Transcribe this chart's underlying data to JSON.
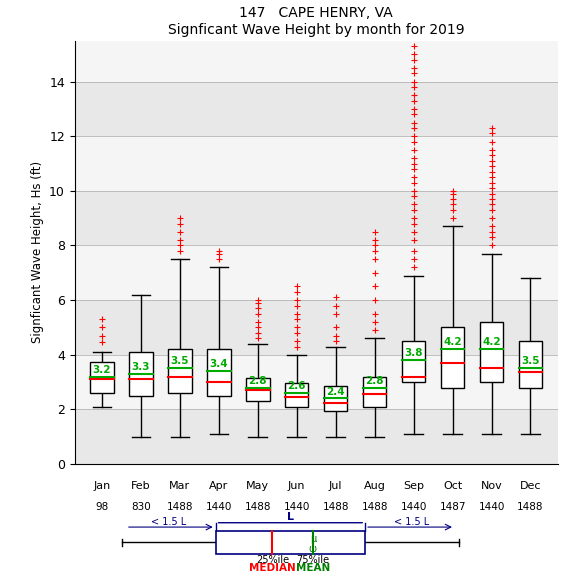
{
  "title1": "147   CAPE HENRY, VA",
  "title2": "Signficant Wave Height by month for 2019",
  "ylabel": "Signficant Wave Height, Hs (ft)",
  "months": [
    "Jan",
    "Feb",
    "Mar",
    "Apr",
    "May",
    "Jun",
    "Jul",
    "Aug",
    "Sep",
    "Oct",
    "Nov",
    "Dec"
  ],
  "counts": [
    "98",
    "830",
    "1488",
    "1440",
    "1488",
    "1440",
    "1488",
    "1488",
    "1440",
    "1487",
    "1440",
    "1488"
  ],
  "ylim": [
    0,
    15.5
  ],
  "yticks": [
    0,
    2,
    4,
    6,
    8,
    10,
    12,
    14
  ],
  "box_stats": [
    {
      "q1": 2.6,
      "median": 3.1,
      "q3": 3.75,
      "whislo": 2.1,
      "whishi": 4.1,
      "mean": 3.2,
      "fliers_high": [
        4.45,
        4.7,
        5.0,
        5.3
      ],
      "fliers_low": []
    },
    {
      "q1": 2.5,
      "median": 3.1,
      "q3": 4.1,
      "whislo": 1.0,
      "whishi": 6.2,
      "mean": 3.3,
      "fliers_high": [],
      "fliers_low": []
    },
    {
      "q1": 2.6,
      "median": 3.2,
      "q3": 4.2,
      "whislo": 1.0,
      "whishi": 7.5,
      "mean": 3.5,
      "fliers_high": [
        7.8,
        8.0,
        8.2,
        8.5,
        8.8,
        9.0
      ],
      "fliers_low": []
    },
    {
      "q1": 2.5,
      "median": 3.0,
      "q3": 4.2,
      "whislo": 1.1,
      "whishi": 7.2,
      "mean": 3.4,
      "fliers_high": [
        7.5,
        7.7,
        7.8
      ],
      "fliers_low": []
    },
    {
      "q1": 2.3,
      "median": 2.7,
      "q3": 3.15,
      "whislo": 1.0,
      "whishi": 4.4,
      "mean": 2.8,
      "fliers_high": [
        4.6,
        4.8,
        5.0,
        5.2,
        5.5,
        5.7,
        5.9,
        6.0
      ],
      "fliers_low": []
    },
    {
      "q1": 2.1,
      "median": 2.45,
      "q3": 2.95,
      "whislo": 1.0,
      "whishi": 4.0,
      "mean": 2.6,
      "fliers_high": [
        4.3,
        4.5,
        4.8,
        5.0,
        5.3,
        5.5,
        5.8,
        6.0,
        6.3,
        6.5
      ],
      "fliers_low": []
    },
    {
      "q1": 1.95,
      "median": 2.25,
      "q3": 2.85,
      "whislo": 1.0,
      "whishi": 4.3,
      "mean": 2.4,
      "fliers_high": [
        4.5,
        4.7,
        5.0,
        5.5,
        5.8,
        6.1
      ],
      "fliers_low": []
    },
    {
      "q1": 2.1,
      "median": 2.55,
      "q3": 3.2,
      "whislo": 1.0,
      "whishi": 4.6,
      "mean": 2.8,
      "fliers_high": [
        4.9,
        5.2,
        5.5,
        6.0,
        6.5,
        7.0,
        7.5,
        7.8,
        8.0,
        8.2,
        8.5
      ],
      "fliers_low": []
    },
    {
      "q1": 3.0,
      "median": 3.2,
      "q3": 4.5,
      "whislo": 1.1,
      "whishi": 6.9,
      "mean": 3.8,
      "fliers_high": [
        7.2,
        7.5,
        7.8,
        8.2,
        8.5,
        8.8,
        9.0,
        9.3,
        9.5,
        9.8,
        10.0,
        10.3,
        10.5,
        10.8,
        11.0,
        11.2,
        11.5,
        11.8,
        12.0,
        12.3,
        12.5,
        12.8,
        13.0,
        13.3,
        13.5,
        13.8,
        14.0,
        14.3,
        14.5,
        14.8,
        15.0,
        15.3
      ],
      "fliers_low": []
    },
    {
      "q1": 2.8,
      "median": 3.7,
      "q3": 5.0,
      "whislo": 1.1,
      "whishi": 8.7,
      "mean": 4.2,
      "fliers_high": [
        9.0,
        9.3,
        9.5,
        9.7,
        9.9,
        10.0
      ],
      "fliers_low": []
    },
    {
      "q1": 3.0,
      "median": 3.5,
      "q3": 5.2,
      "whislo": 1.1,
      "whishi": 7.7,
      "mean": 4.2,
      "fliers_high": [
        8.0,
        8.3,
        8.5,
        8.7,
        9.0,
        9.3,
        9.5,
        9.7,
        9.9,
        10.1,
        10.3,
        10.5,
        10.7,
        10.9,
        11.1,
        11.3,
        11.5,
        11.8,
        12.1,
        12.3
      ],
      "fliers_low": []
    },
    {
      "q1": 2.8,
      "median": 3.35,
      "q3": 4.5,
      "whislo": 1.1,
      "whishi": 6.8,
      "mean": 3.5,
      "fliers_high": [],
      "fliers_low": []
    }
  ],
  "bg_bands": [
    [
      0,
      2,
      "#e8e8e8"
    ],
    [
      2,
      4,
      "#f5f5f5"
    ],
    [
      4,
      6,
      "#e8e8e8"
    ],
    [
      6,
      8,
      "#f5f5f5"
    ],
    [
      8,
      10,
      "#e8e8e8"
    ],
    [
      10,
      12,
      "#f5f5f5"
    ],
    [
      12,
      14,
      "#e8e8e8"
    ],
    [
      14,
      16,
      "#f5f5f5"
    ]
  ],
  "box_edgecolor": "#000000",
  "median_color": "#ff0000",
  "mean_color": "#00aa00",
  "flier_color": "#ff0000",
  "whisker_color": "#000000",
  "box_width": 0.6
}
